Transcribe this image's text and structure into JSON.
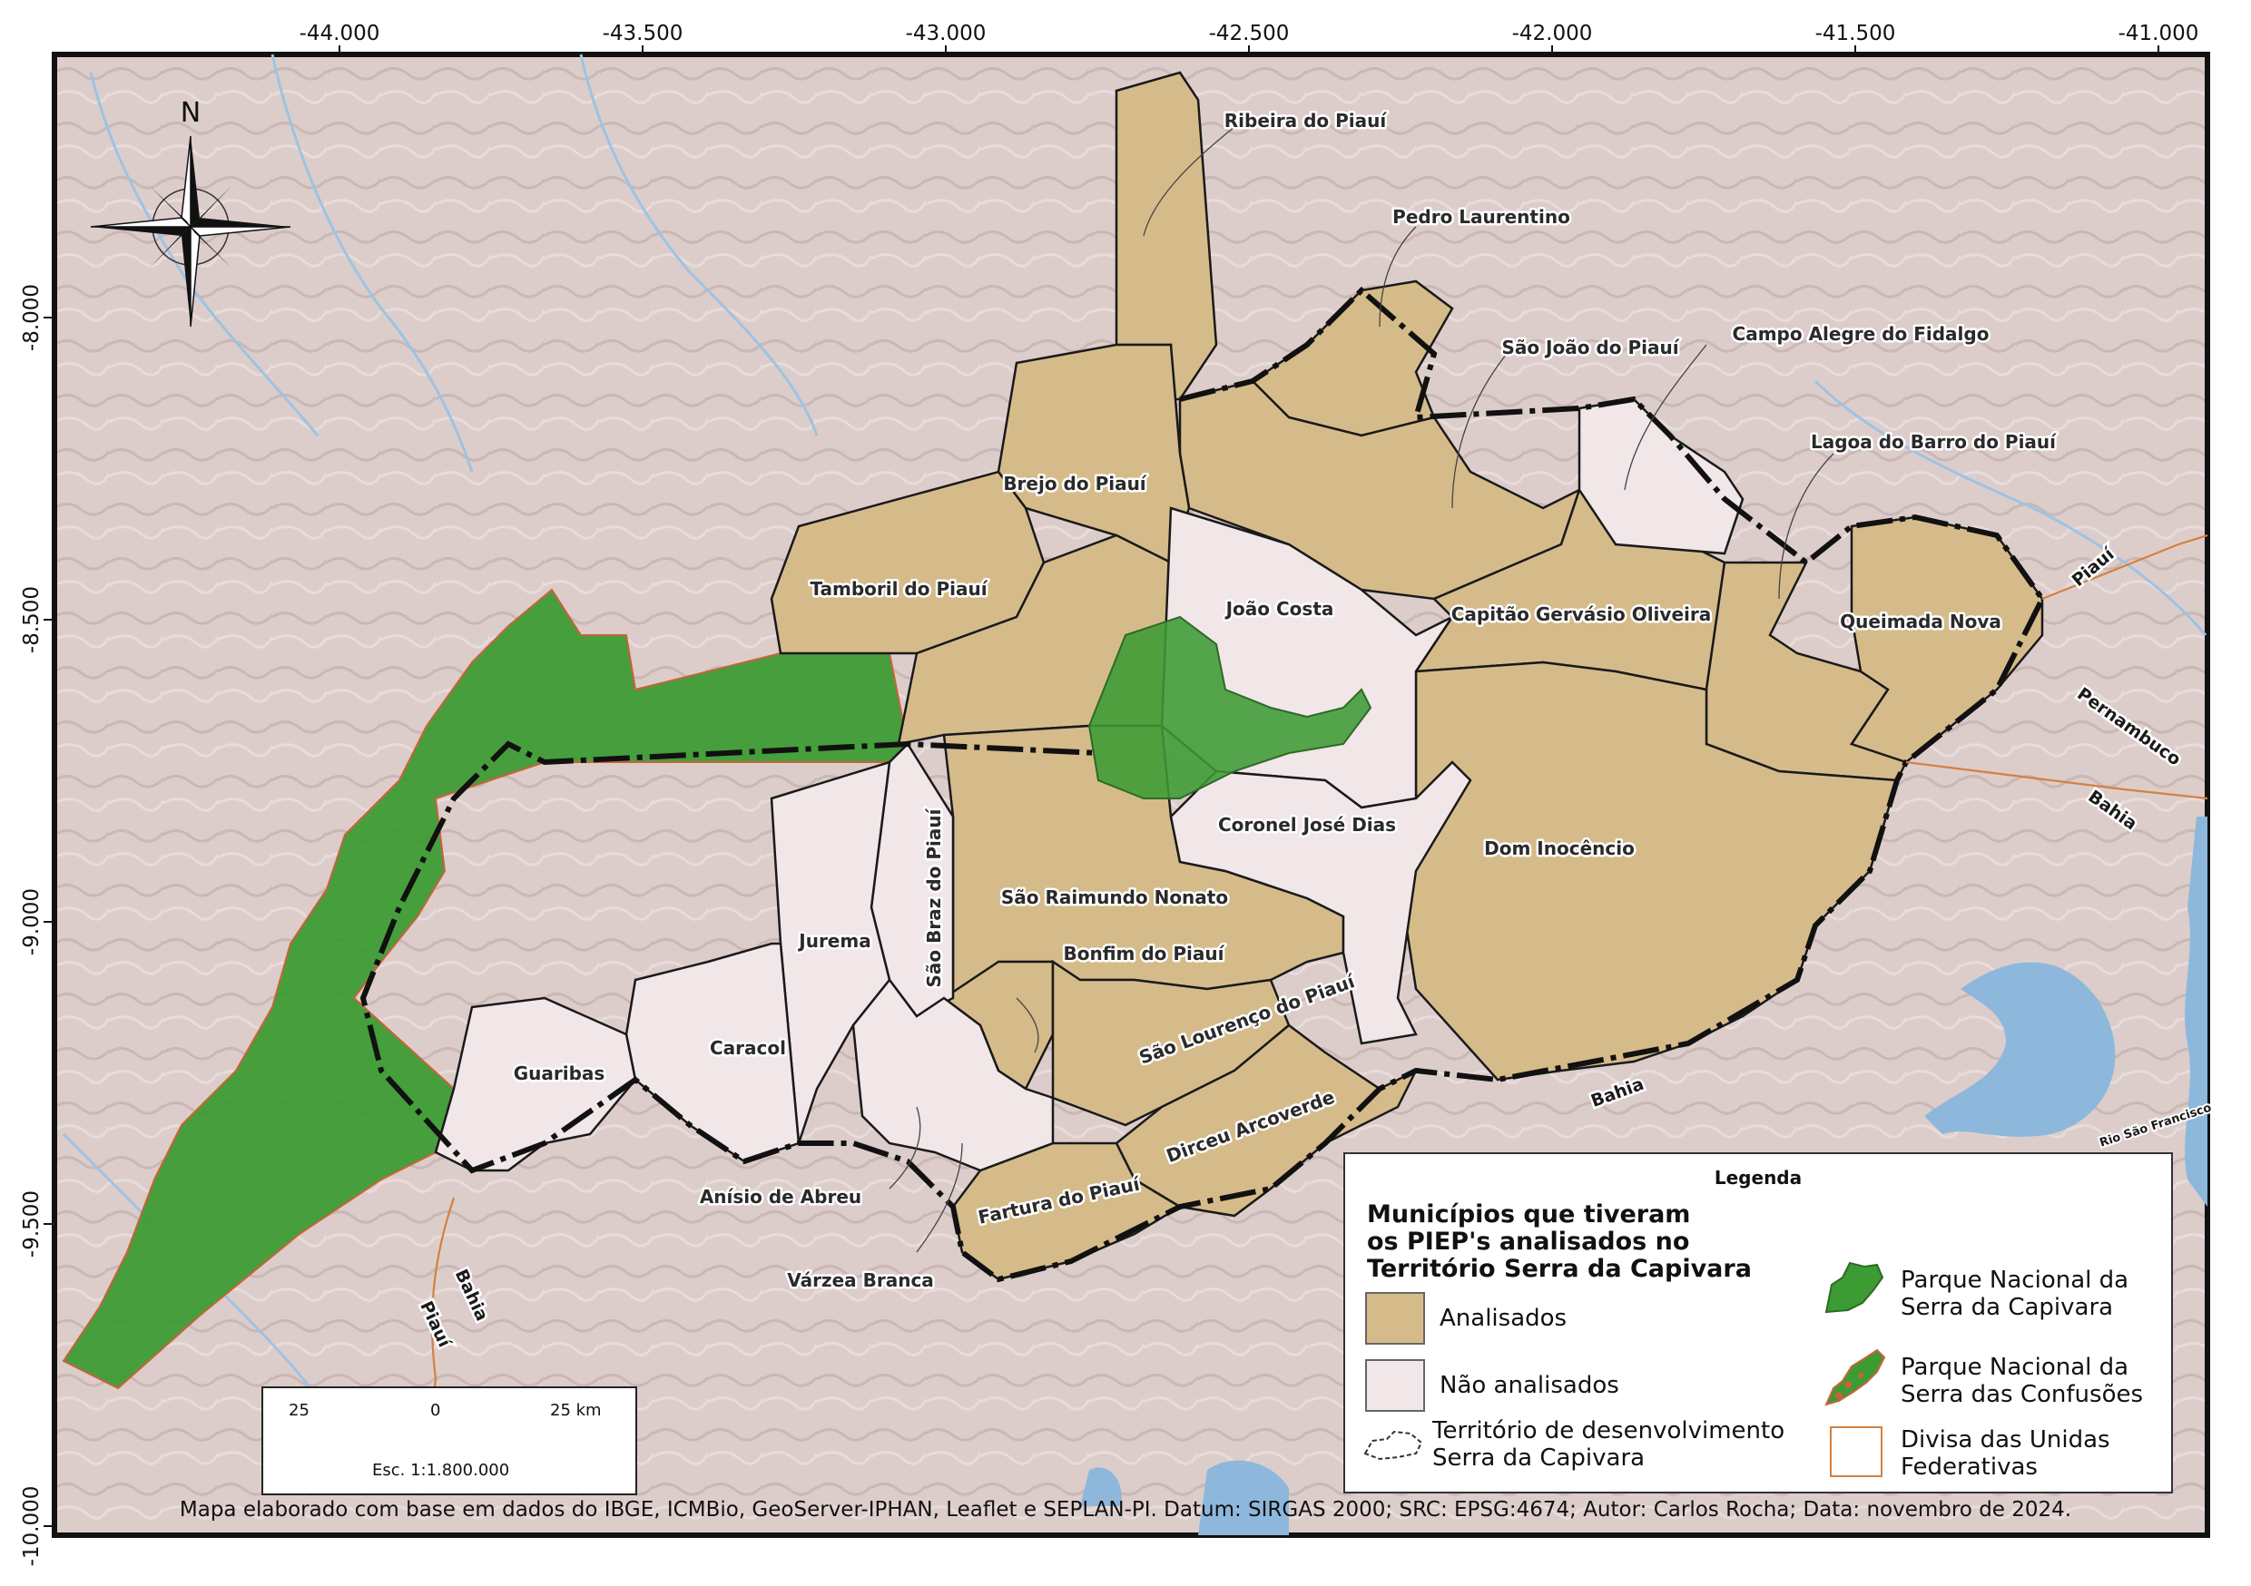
{
  "grid": {
    "lon_labels": [
      "-44.000",
      "-43.500",
      "-43.000",
      "-42.500",
      "-42.000",
      "-41.500",
      "-41.000"
    ],
    "lat_labels": [
      "-8.000",
      "-8.500",
      "-9.000",
      "-9.500",
      "-10.000"
    ]
  },
  "compass": {
    "north_label": "N"
  },
  "municipalities": {
    "ribeira": "Ribeira do Piauí",
    "pedro": "Pedro Laurentino",
    "sao_joao": "São João do Piauí",
    "campo_alegre": "Campo Alegre do Fidalgo",
    "lagoa": "Lagoa do Barro do Piauí",
    "brejo": "Brejo do Piauí",
    "tamboril": "Tamboril do Piauí",
    "joao_costa": "João Costa",
    "capitao": "Capitão Gervásio Oliveira",
    "queimada": "Queimada Nova",
    "coronel": "Coronel José Dias",
    "dom": "Dom Inocêncio",
    "sao_raimundo": "São Raimundo Nonato",
    "sao_braz": "São Braz do Piauí",
    "jurema": "Jurema",
    "bonfim": "Bonfim do Piauí",
    "sao_lourenco": "São Lourenço do Piauí",
    "caracol": "Caracol",
    "guaribas": "Guaribas",
    "dirceu": "Dirceu Arcoverde",
    "fartura": "Fartura do Piauí",
    "anisio": "Anísio de Abreu",
    "varzea": "Várzea Branca"
  },
  "states": {
    "piaui": "Piauí",
    "pernambuco": "Pernambuco",
    "bahia": "Bahia"
  },
  "river": "Rio São Francisco",
  "legend": {
    "title": "Legenda",
    "heading_lines": [
      "Municípios que tiveram",
      "os PIEP's analisados no",
      "Território Serra da Capivara"
    ],
    "analisados": "Analisados",
    "nao_analisados": "Não analisados",
    "territorio": [
      "Território de desenvolvimento",
      "Serra da Capivara"
    ],
    "capivara": [
      "Parque Nacional da",
      "Serra da Capivara"
    ],
    "confusoes": [
      "Parque Nacional da",
      "Serra das Confusões"
    ],
    "divisa": [
      "Divisa das Unidas",
      "Federativas"
    ]
  },
  "scale": {
    "left": "25",
    "mid": "0",
    "right": "25 km",
    "ratio": "Esc. 1:1.800.000"
  },
  "footer": "Mapa elaborado com base em dados do IBGE, ICMBio, GeoServer-IPHAN, Leaflet e SEPLAN-PI. Datum: SIRGAS 2000; SRC: EPSG:4674; Autor: Carlos Rocha; Data: novembro de 2024.",
  "colors": {
    "analisados": "#d6bb8a",
    "nao_analisados": "#f1e6e8",
    "park": "#3a9a32",
    "terrain": "#ddcfcc",
    "water": "#8db8dc",
    "state_border": "#d4813f"
  }
}
